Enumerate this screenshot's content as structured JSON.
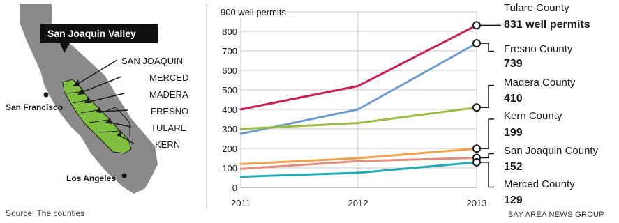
{
  "map": {
    "badge": "San Joaquin Valley",
    "counties": [
      "SAN JOAQUIN",
      "MERCED",
      "MADERA",
      "FRESNO",
      "TULARE",
      "KERN"
    ],
    "cities": [
      "San Francisco",
      "Los Angeles"
    ],
    "colors": {
      "state": "#8a8a8a",
      "valley": "#7fbf3f",
      "badge": "#111111"
    }
  },
  "footer": {
    "source": "Source: The counties",
    "credit": "BAY AREA NEWS GROUP"
  },
  "chart_data": {
    "type": "line",
    "x": [
      "2011",
      "2012",
      "2013"
    ],
    "ylim": [
      0,
      900
    ],
    "yticks": [
      0,
      100,
      200,
      300,
      400,
      500,
      600,
      700,
      800,
      900
    ],
    "ytick_labels": [
      "0",
      "100",
      "200",
      "300",
      "400",
      "500",
      "600",
      "700",
      "800",
      "900 well permits"
    ],
    "grid": true,
    "series": [
      {
        "name": "Tulare County",
        "values": [
          400,
          520,
          831
        ],
        "label_value": "831 well permits",
        "color": "#c8204f"
      },
      {
        "name": "Fresno County",
        "values": [
          275,
          400,
          739
        ],
        "label_value": "739",
        "color": "#6e9ccc"
      },
      {
        "name": "Madera County",
        "values": [
          300,
          330,
          410
        ],
        "label_value": "410",
        "color": "#9cbd45"
      },
      {
        "name": "Kern County",
        "values": [
          120,
          150,
          199
        ],
        "label_value": "199",
        "color": "#f2a04b"
      },
      {
        "name": "San Joaquin County",
        "values": [
          95,
          135,
          152
        ],
        "label_value": "152",
        "color": "#e38e7b"
      },
      {
        "name": "Merced County",
        "values": [
          55,
          75,
          129
        ],
        "label_value": "129",
        "color": "#22aab0"
      }
    ]
  }
}
